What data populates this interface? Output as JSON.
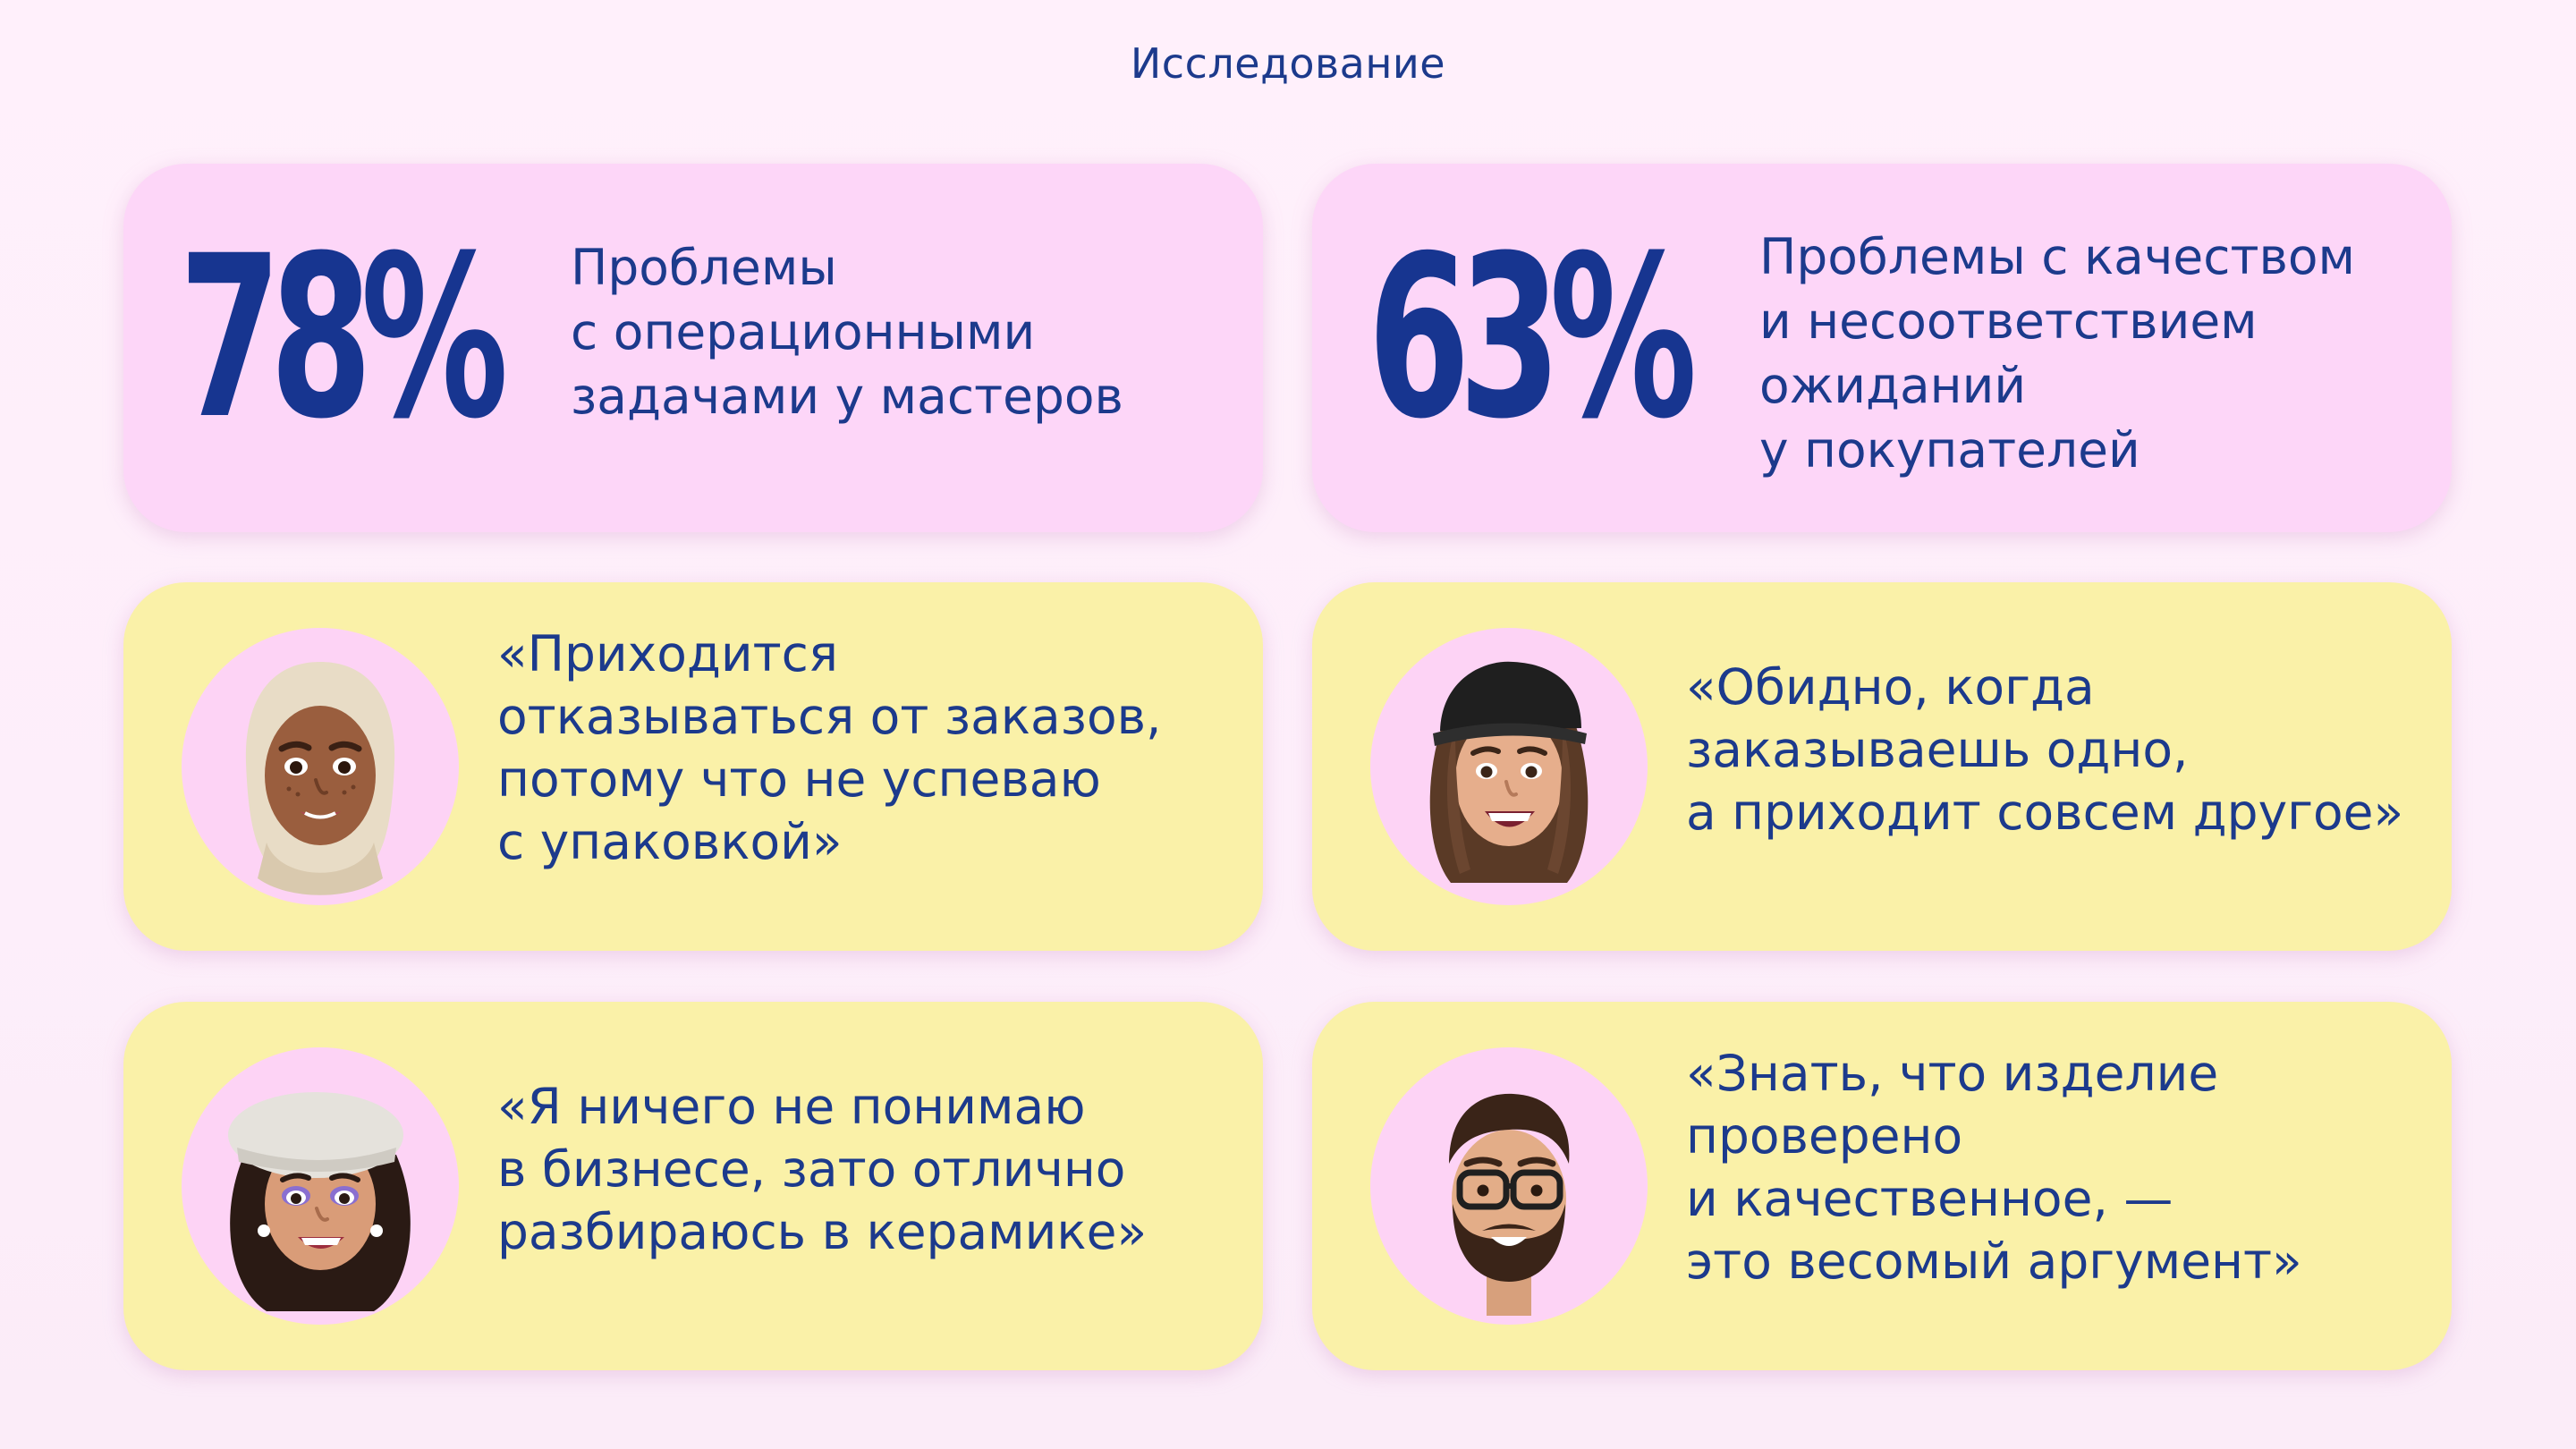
{
  "header": {
    "title": "Исследование"
  },
  "stats": [
    {
      "value": "78%",
      "text": "Проблемы\nс операционными\nзадачами у мастеров"
    },
    {
      "value": "63%",
      "text": "Проблемы с качеством\nи несоответствием\nожиданий\nу покупателей"
    }
  ],
  "quotes": [
    {
      "avatar_icon": "hijab-woman-avatar-icon",
      "text": "«Приходится\nотказываться от заказов,\nпотому что не успеваю\nс упаковкой»"
    },
    {
      "avatar_icon": "cap-woman-avatar-icon",
      "text": "«Обидно, когда\nзаказываешь одно,\nа приходит совсем другое»"
    },
    {
      "avatar_icon": "beret-woman-avatar-icon",
      "text": "«Я ничего не понимаю\nв бизнесе, зато отлично\nразбираюсь в керамике»"
    },
    {
      "avatar_icon": "bearded-man-avatar-icon",
      "text": "«Знать, что изделие\nпроверено\nи качественное, —\nэто весомый аргумент»"
    }
  ],
  "colors": {
    "text": "#1c3a8c",
    "stat_value": "#173590",
    "pink_card": "#fdd6f8",
    "yellow_card": "#faf1a8",
    "avatar_bg": "#fdd3f5"
  }
}
